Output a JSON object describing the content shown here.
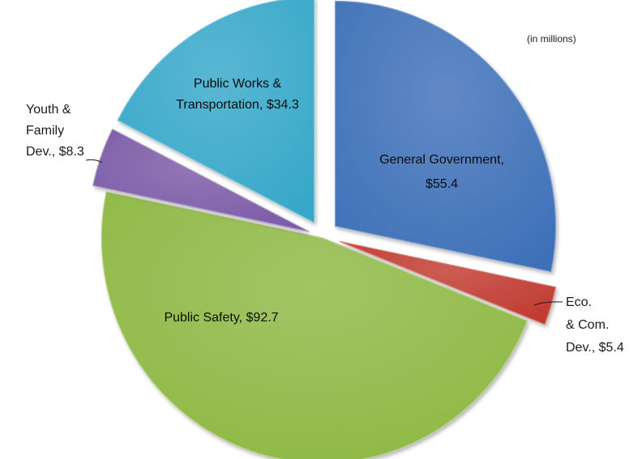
{
  "chart_data": {
    "type": "pie",
    "unit_note": "(in millions)",
    "slices": [
      {
        "name": "General Government",
        "value": 55.4,
        "color": "#3e70b8",
        "label_lines": [
          "General Government,",
          "$55.4"
        ],
        "label_position": "inside"
      },
      {
        "name": "Eco. & Com. Dev.",
        "value": 5.4,
        "color": "#c0392f",
        "label_lines": [
          "Eco.",
          "& Com.",
          "Dev.,  $5.4"
        ],
        "label_position": "outside-leader"
      },
      {
        "name": "Public Safety",
        "value": 92.7,
        "color": "#8db843",
        "label_lines": [
          "Public Safety, $92.7"
        ],
        "label_position": "inside"
      },
      {
        "name": "Youth & Family Dev.",
        "value": 8.3,
        "color": "#7a5aa6",
        "label_lines": [
          "Youth &",
          "Family",
          "Dev.,  $8.3"
        ],
        "label_position": "outside-leader"
      },
      {
        "name": "Public Works & Transportation",
        "value": 34.3,
        "color": "#36a7c9",
        "label_lines": [
          "Public Works &",
          "Transportation, $34.3"
        ],
        "label_position": "inside"
      }
    ]
  }
}
